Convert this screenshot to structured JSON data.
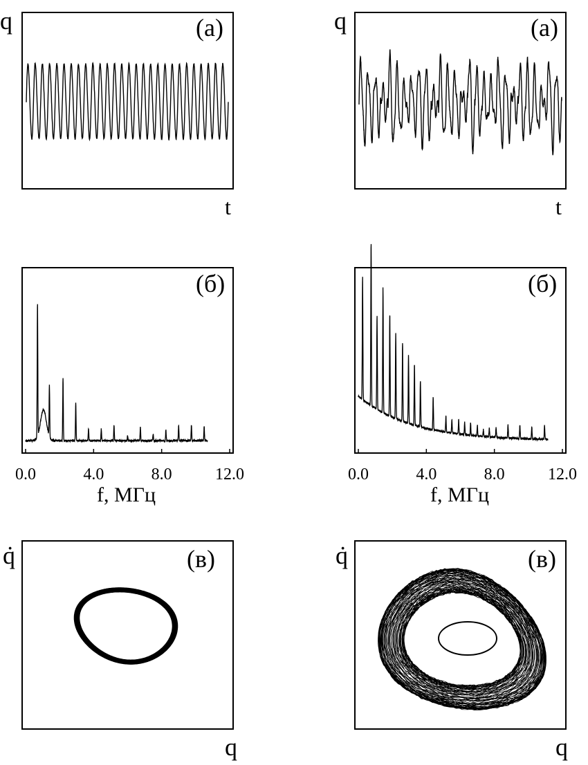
{
  "figure": {
    "ink_color": "#000000",
    "background": "#ffffff"
  },
  "chart_data": [
    {
      "id": "periodic-time-series",
      "type": "line",
      "panel_label": "(а)",
      "ylabel": "q",
      "xlabel": "t",
      "series": [
        {
          "shape": "periodic",
          "cycles": 28
        }
      ],
      "axes_ticks": false,
      "grid": false
    },
    {
      "id": "chaotic-time-series",
      "type": "line",
      "panel_label": "(а)",
      "ylabel": "q",
      "xlabel": "t",
      "series": [
        {
          "shape": "irregular",
          "cycles": 28
        }
      ],
      "axes_ticks": false,
      "grid": false
    },
    {
      "id": "periodic-spectrum",
      "type": "line",
      "panel_label": "(б)",
      "xlabel": "f, МГц",
      "xlim": [
        0.0,
        12.0
      ],
      "x_ticks": [
        "0.0",
        "4.0",
        "8.0",
        "12.0"
      ],
      "x_tick_values": [
        0,
        4,
        8,
        12
      ],
      "baseline_level": 0.04,
      "peaks": [
        {
          "f": 0.7,
          "amp": 0.78
        },
        {
          "f": 1.4,
          "amp": 0.3
        },
        {
          "f": 2.2,
          "amp": 0.36
        },
        {
          "f": 2.95,
          "amp": 0.22
        },
        {
          "f": 3.7,
          "amp": 0.07
        },
        {
          "f": 4.45,
          "amp": 0.07
        },
        {
          "f": 5.2,
          "amp": 0.09
        },
        {
          "f": 6.0,
          "amp": 0.03
        },
        {
          "f": 6.75,
          "amp": 0.08
        },
        {
          "f": 7.5,
          "amp": 0.04
        },
        {
          "f": 8.25,
          "amp": 0.06
        },
        {
          "f": 9.0,
          "amp": 0.09
        },
        {
          "f": 9.75,
          "amp": 0.09
        },
        {
          "f": 10.5,
          "amp": 0.08
        }
      ],
      "broad_hump": {
        "f": 1.05,
        "amp": 0.18,
        "width": 0.25
      },
      "grid": false
    },
    {
      "id": "chaotic-spectrum",
      "type": "line",
      "panel_label": "(б)",
      "xlabel": "f, МГц",
      "xlim": [
        0.0,
        12.0
      ],
      "x_ticks": [
        "0.0",
        "4.0",
        "8.0",
        "12.0"
      ],
      "x_tick_values": [
        0,
        4,
        8,
        12
      ],
      "decaying_background": {
        "start": 0.3,
        "end": 0.04,
        "decay": 0.32
      },
      "peaks": [
        {
          "f": 0.25,
          "amp": 0.72
        },
        {
          "f": 0.75,
          "amp": 0.95
        },
        {
          "f": 1.1,
          "amp": 0.55
        },
        {
          "f": 1.45,
          "amp": 0.73
        },
        {
          "f": 1.85,
          "amp": 0.6
        },
        {
          "f": 2.2,
          "amp": 0.5
        },
        {
          "f": 2.6,
          "amp": 0.46
        },
        {
          "f": 2.95,
          "amp": 0.4
        },
        {
          "f": 3.3,
          "amp": 0.35
        },
        {
          "f": 3.65,
          "amp": 0.27
        },
        {
          "f": 4.4,
          "amp": 0.19
        },
        {
          "f": 5.15,
          "amp": 0.09
        },
        {
          "f": 5.5,
          "amp": 0.08
        },
        {
          "f": 5.9,
          "amp": 0.08
        },
        {
          "f": 6.25,
          "amp": 0.07
        },
        {
          "f": 6.6,
          "amp": 0.07
        },
        {
          "f": 7.0,
          "amp": 0.06
        },
        {
          "f": 7.35,
          "amp": 0.04
        },
        {
          "f": 7.7,
          "amp": 0.05
        },
        {
          "f": 8.1,
          "amp": 0.06
        },
        {
          "f": 8.8,
          "amp": 0.08
        },
        {
          "f": 9.5,
          "amp": 0.08
        },
        {
          "f": 10.2,
          "amp": 0.07
        },
        {
          "f": 10.95,
          "amp": 0.08
        }
      ],
      "grid": false
    },
    {
      "id": "periodic-phase-portrait",
      "type": "line",
      "panel_label": "(в)",
      "ylabel": "q̇",
      "xlabel": "q",
      "attractor": "limit-cycle",
      "axes_ticks": false,
      "grid": false
    },
    {
      "id": "chaotic-phase-portrait",
      "type": "line",
      "panel_label": "(в)",
      "ylabel": "q̇",
      "xlabel": "q",
      "attractor": "chaotic",
      "axes_ticks": false,
      "grid": false
    }
  ]
}
